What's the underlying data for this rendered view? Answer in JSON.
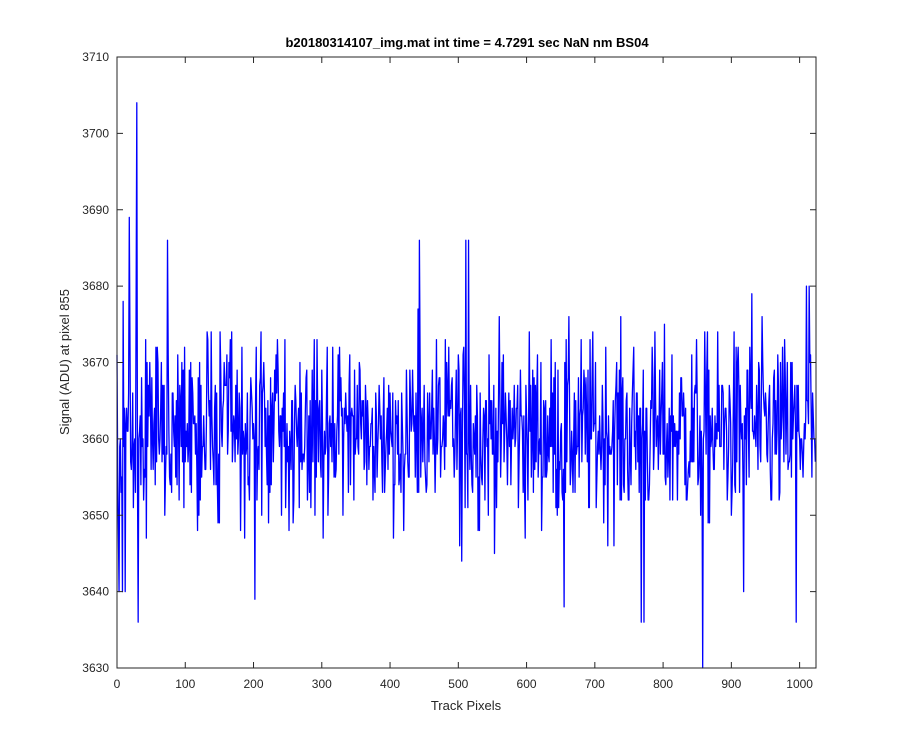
{
  "chart_data": {
    "type": "line",
    "title": "b20180314107_img.mat int time = 4.7291 sec  NaN nm BS04",
    "xlabel": "Track Pixels",
    "ylabel": "Signal (ADU) at pixel 855",
    "xlim": [
      0,
      1024
    ],
    "ylim": [
      3630,
      3710
    ],
    "xticks": [
      0,
      100,
      200,
      300,
      400,
      500,
      600,
      700,
      800,
      900,
      1000
    ],
    "yticks": [
      3630,
      3640,
      3650,
      3660,
      3670,
      3680,
      3690,
      3700,
      3710
    ],
    "grid": false,
    "legend": "none",
    "series_color": "#0000ff",
    "noise_mean": 3661,
    "noise_spread": 6,
    "key_points": [
      {
        "x": 0,
        "y": 3671
      },
      {
        "x": 3,
        "y": 3640
      },
      {
        "x": 8,
        "y": 3640
      },
      {
        "x": 9,
        "y": 3678
      },
      {
        "x": 12,
        "y": 3640
      },
      {
        "x": 18,
        "y": 3689
      },
      {
        "x": 28,
        "y": 3678
      },
      {
        "x": 29,
        "y": 3704
      },
      {
        "x": 31,
        "y": 3636
      },
      {
        "x": 74,
        "y": 3686
      },
      {
        "x": 202,
        "y": 3639
      },
      {
        "x": 443,
        "y": 3686
      },
      {
        "x": 505,
        "y": 3644
      },
      {
        "x": 511,
        "y": 3686
      },
      {
        "x": 515,
        "y": 3686
      },
      {
        "x": 655,
        "y": 3638
      },
      {
        "x": 768,
        "y": 3636
      },
      {
        "x": 772,
        "y": 3636
      },
      {
        "x": 858,
        "y": 3630
      },
      {
        "x": 918,
        "y": 3640
      },
      {
        "x": 930,
        "y": 3679
      },
      {
        "x": 995,
        "y": 3636
      },
      {
        "x": 1010,
        "y": 3680
      },
      {
        "x": 1014,
        "y": 3680
      },
      {
        "x": 1023,
        "y": 3657
      }
    ]
  }
}
